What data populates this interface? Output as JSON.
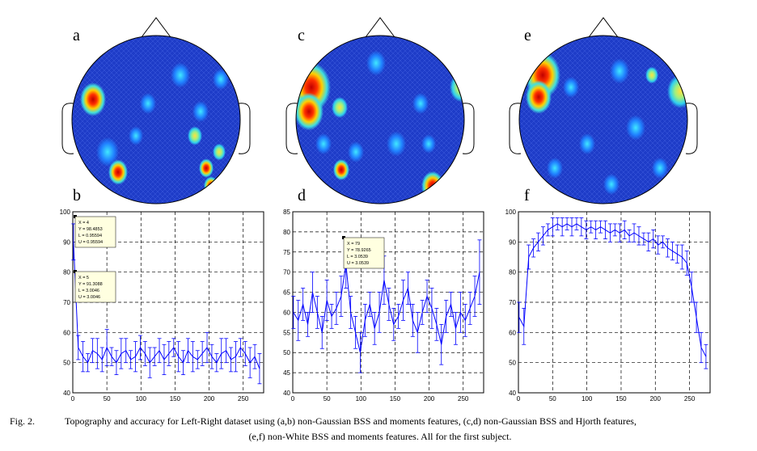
{
  "panel_labels": [
    "a",
    "b",
    "c",
    "d",
    "e",
    "f"
  ],
  "chart_data": [
    {
      "type": "errorbar",
      "color": "#0000ff",
      "grid": true,
      "xlim": [
        0,
        280
      ],
      "xticks": [
        0,
        50,
        100,
        150,
        200,
        250
      ],
      "ylim": [
        40,
        100
      ],
      "yticks": [
        40,
        50,
        60,
        70,
        80,
        90,
        100
      ],
      "x": [
        1,
        8,
        15,
        22,
        29,
        36,
        43,
        50,
        57,
        64,
        71,
        78,
        85,
        92,
        99,
        106,
        113,
        120,
        127,
        134,
        141,
        148,
        155,
        162,
        169,
        176,
        183,
        190,
        197,
        204,
        211,
        218,
        225,
        232,
        239,
        246,
        253,
        260,
        267,
        274
      ],
      "values": [
        90,
        55,
        52,
        50,
        54,
        53,
        51,
        55,
        52,
        50,
        53,
        54,
        51,
        52,
        55,
        53,
        50,
        52,
        54,
        51,
        53,
        55,
        52,
        50,
        54,
        52,
        51,
        53,
        55,
        52,
        50,
        53,
        54,
        51,
        52,
        55,
        53,
        50,
        52,
        48
      ],
      "errors": [
        6,
        4,
        5,
        3,
        4,
        5,
        4,
        6,
        3,
        4,
        5,
        4,
        3,
        5,
        4,
        4,
        5,
        3,
        4,
        5,
        4,
        3,
        5,
        4,
        4,
        5,
        3,
        4,
        5,
        4,
        3,
        5,
        4,
        4,
        5,
        3,
        4,
        5,
        4,
        5
      ],
      "datatips": [
        {
          "lines": [
            "X = 4",
            "Y = 98.4853",
            "L = 0.95594",
            "U = 0.95594"
          ]
        },
        {
          "lines": [
            "X = 5",
            "Y = 91.3088",
            "L = 3.0046",
            "U = 3.0046"
          ]
        }
      ]
    },
    {
      "type": "errorbar",
      "color": "#0000ff",
      "grid": true,
      "xlim": [
        0,
        280
      ],
      "xticks": [
        0,
        50,
        100,
        150,
        200,
        250
      ],
      "ylim": [
        40,
        85
      ],
      "yticks": [
        40,
        45,
        50,
        55,
        60,
        65,
        70,
        75,
        80,
        85
      ],
      "x": [
        1,
        8,
        15,
        22,
        29,
        36,
        43,
        50,
        57,
        64,
        71,
        78,
        85,
        92,
        99,
        106,
        113,
        120,
        127,
        134,
        141,
        148,
        155,
        162,
        169,
        176,
        183,
        190,
        197,
        204,
        211,
        218,
        225,
        232,
        239,
        246,
        253,
        260,
        267,
        274
      ],
      "values": [
        60,
        58,
        62,
        57,
        65,
        60,
        55,
        63,
        59,
        61,
        64,
        72,
        60,
        55,
        50,
        58,
        62,
        56,
        60,
        68,
        62,
        57,
        59,
        63,
        66,
        58,
        55,
        60,
        64,
        61,
        57,
        52,
        59,
        62,
        56,
        60,
        58,
        61,
        64,
        70
      ],
      "errors": [
        4,
        5,
        4,
        3,
        5,
        4,
        4,
        5,
        3,
        4,
        5,
        6,
        4,
        4,
        5,
        4,
        3,
        4,
        5,
        6,
        4,
        4,
        3,
        5,
        4,
        4,
        5,
        3,
        4,
        5,
        4,
        5,
        4,
        3,
        4,
        5,
        4,
        4,
        5,
        8
      ],
      "datatips": [
        {
          "lines": [
            "X = 79",
            "Y = 78.9265",
            "L = 3.0539",
            "U = 3.0539"
          ]
        }
      ]
    },
    {
      "type": "errorbar",
      "color": "#0000ff",
      "grid": true,
      "xlim": [
        0,
        280
      ],
      "xticks": [
        0,
        50,
        100,
        150,
        200,
        250
      ],
      "ylim": [
        40,
        100
      ],
      "yticks": [
        40,
        50,
        60,
        70,
        80,
        90,
        100
      ],
      "x": [
        1,
        8,
        15,
        22,
        29,
        36,
        43,
        50,
        57,
        64,
        71,
        78,
        85,
        92,
        99,
        106,
        113,
        120,
        127,
        134,
        141,
        148,
        155,
        162,
        169,
        176,
        183,
        190,
        197,
        204,
        211,
        218,
        225,
        232,
        239,
        246,
        253,
        260,
        267,
        274
      ],
      "values": [
        65,
        62,
        85,
        88,
        90,
        92,
        94,
        95,
        96,
        95,
        96,
        95,
        96,
        95,
        94,
        95,
        94,
        95,
        94,
        93,
        94,
        93,
        94,
        92,
        93,
        92,
        91,
        90,
        91,
        89,
        90,
        88,
        87,
        86,
        85,
        83,
        75,
        65,
        55,
        52
      ],
      "errors": [
        5,
        6,
        4,
        3,
        3,
        3,
        2,
        3,
        2,
        3,
        2,
        3,
        2,
        3,
        3,
        2,
        3,
        2,
        3,
        3,
        2,
        3,
        3,
        2,
        3,
        3,
        2,
        3,
        3,
        3,
        2,
        3,
        3,
        3,
        4,
        4,
        5,
        5,
        5,
        4
      ],
      "datatips": []
    }
  ],
  "caption": {
    "label": "Fig. 2.",
    "lines": [
      "Topography and accuracy for Left-Right dataset using (a,b) non-Gaussian BSS and moments features, (c,d) non-Gaussian BSS and Hjorth features,",
      "(e,f) non-White BSS and moments features. All for the first subject."
    ]
  }
}
